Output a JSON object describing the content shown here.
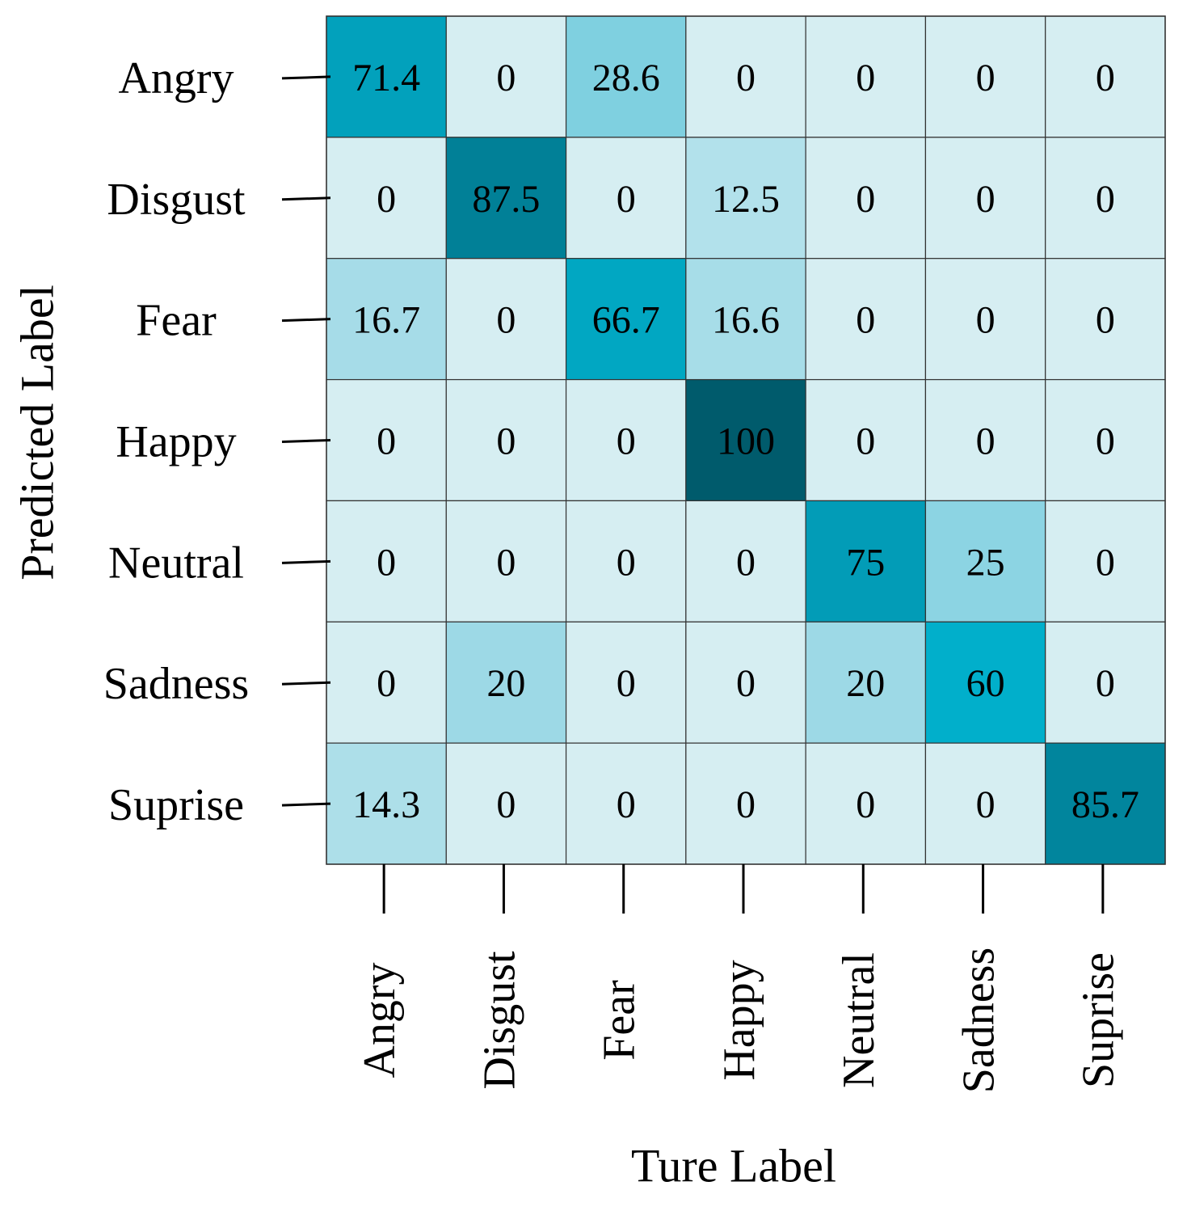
{
  "chart_data": {
    "type": "heatmap",
    "title": "",
    "xlabel": "Ture Label",
    "ylabel": "Predicted Label",
    "row_labels": [
      "Angry",
      "Disgust",
      "Fear",
      "Happy",
      "Neutral",
      "Sadness",
      "Suprise"
    ],
    "col_labels": [
      "Angry",
      "Disgust",
      "Fear",
      "Happy",
      "Neutral",
      "Sadness",
      "Suprise"
    ],
    "values": [
      [
        "71.4",
        "0",
        "28.6",
        "0",
        "0",
        "0",
        "0"
      ],
      [
        "0",
        "87.5",
        "0",
        "12.5",
        "0",
        "0",
        "0"
      ],
      [
        "16.7",
        "0",
        "66.7",
        "16.6",
        "0",
        "0",
        "0"
      ],
      [
        "0",
        "0",
        "0",
        "100",
        "0",
        "0",
        "0"
      ],
      [
        "0",
        "0",
        "0",
        "0",
        "75",
        "25",
        "0"
      ],
      [
        "0",
        "20",
        "0",
        "0",
        "20",
        "60",
        "0"
      ],
      [
        "14.3",
        "0",
        "0",
        "0",
        "0",
        "0",
        "85.7"
      ]
    ],
    "value_range": [
      0,
      100
    ],
    "colormap": [
      "#d6eef2",
      "#9dd9e6",
      "#58c4d8",
      "#01afcb",
      "#0296b0",
      "#005b6c"
    ]
  }
}
